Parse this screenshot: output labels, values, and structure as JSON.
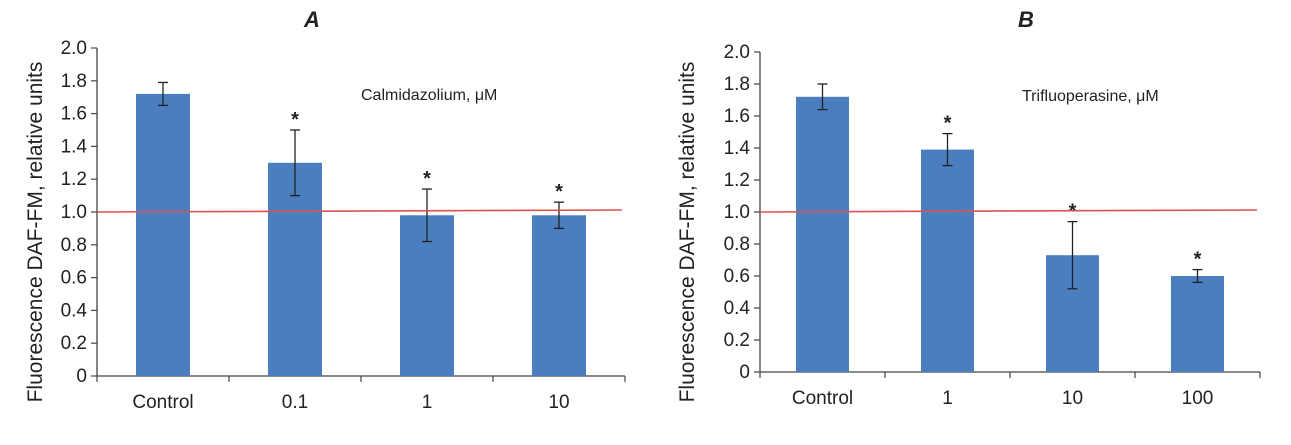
{
  "chart_data": [
    {
      "type": "bar",
      "panel_label": "A",
      "annotation": "Calmidazolium, μM",
      "ylabel": "Fluorescence DAF-FM, relative units",
      "xlabel": "",
      "ylim": [
        0,
        2.0
      ],
      "yticks": [
        "0",
        "0.2",
        "0.4",
        "0.6",
        "0.8",
        "1.0",
        "1.2",
        "1.4",
        "1.6",
        "1.8",
        "2.0"
      ],
      "categories": [
        "Control",
        "0.1",
        "1",
        "10"
      ],
      "values": [
        1.72,
        1.3,
        0.98,
        0.98
      ],
      "errors": [
        0.07,
        0.2,
        0.16,
        0.08
      ],
      "significance": [
        "",
        "*",
        "*",
        "*"
      ],
      "reference_line": 1.0,
      "bar_color": "#4a7ebf",
      "reference_line_color": "#d9534f",
      "grid": false
    },
    {
      "type": "bar",
      "panel_label": "B",
      "annotation": "Trifluoperasine, μM",
      "ylabel": "Fluorescence DAF-FM, relative units",
      "xlabel": "",
      "ylim": [
        0,
        2.0
      ],
      "yticks": [
        "0",
        "0.2",
        "0.4",
        "0.6",
        "0.8",
        "1.0",
        "1.2",
        "1.4",
        "1.6",
        "1.8",
        "2.0"
      ],
      "categories": [
        "Control",
        "1",
        "10",
        "100"
      ],
      "values": [
        1.72,
        1.39,
        0.73,
        0.6
      ],
      "errors": [
        0.08,
        0.1,
        0.21,
        0.04
      ],
      "significance": [
        "",
        "*",
        "*",
        "*"
      ],
      "reference_line": 1.0,
      "bar_color": "#4a7ebf",
      "reference_line_color": "#d9534f",
      "grid": false
    }
  ]
}
